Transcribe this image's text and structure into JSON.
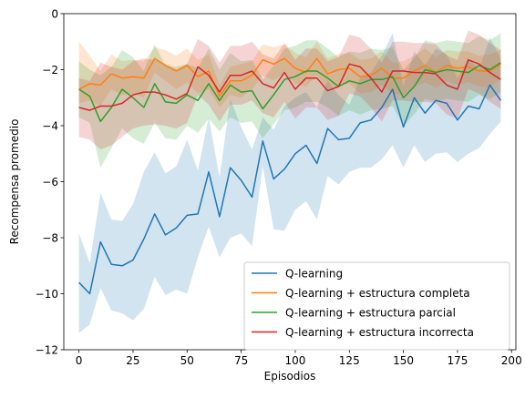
{
  "chart_data": {
    "type": "line",
    "xlabel": "Episodios",
    "ylabel": "Recompensa promedio",
    "xlim": [
      -7,
      202
    ],
    "ylim": [
      -12,
      0
    ],
    "xticks": [
      0,
      25,
      50,
      75,
      100,
      125,
      150,
      175,
      200
    ],
    "yticks": [
      -12,
      -10,
      -8,
      -6,
      -4,
      -2,
      0
    ],
    "grid": false,
    "legend_position": "lower-right",
    "x": [
      0,
      5,
      10,
      15,
      20,
      25,
      30,
      35,
      40,
      45,
      50,
      55,
      60,
      65,
      70,
      75,
      80,
      85,
      90,
      95,
      100,
      105,
      110,
      115,
      120,
      125,
      130,
      135,
      140,
      145,
      150,
      155,
      160,
      165,
      170,
      175,
      180,
      185,
      190,
      195
    ],
    "series": [
      {
        "name": "Q-learning",
        "color": "#1f77b4",
        "values": [
          -9.6,
          -10.0,
          -8.15,
          -8.95,
          -9.0,
          -8.8,
          -8.05,
          -7.15,
          -7.9,
          -7.65,
          -7.2,
          -7.15,
          -5.65,
          -7.25,
          -5.5,
          -5.95,
          -6.55,
          -4.55,
          -5.9,
          -5.55,
          -5.0,
          -4.7,
          -5.35,
          -4.1,
          -4.5,
          -4.45,
          -3.9,
          -3.8,
          -3.35,
          -2.7,
          -4.05,
          -3.0,
          -3.55,
          -3.1,
          -3.2,
          -3.8,
          -3.3,
          -3.4,
          -2.55,
          -3.1
        ],
        "lower": [
          -11.4,
          -11.1,
          -9.8,
          -10.6,
          -10.7,
          -10.95,
          -10.55,
          -9.4,
          -10.05,
          -9.85,
          -10.0,
          -8.7,
          -7.6,
          -8.7,
          -8.0,
          -7.85,
          -8.3,
          -5.45,
          -7.7,
          -7.75,
          -7.0,
          -6.7,
          -7.35,
          -5.8,
          -6.1,
          -5.65,
          -5.5,
          -5.5,
          -5.2,
          -4.7,
          -5.5,
          -4.7,
          -5.3,
          -5.0,
          -4.95,
          -5.3,
          -5.0,
          -4.8,
          -4.3,
          -3.85
        ],
        "upper": [
          -7.85,
          -8.9,
          -6.4,
          -7.35,
          -7.4,
          -6.8,
          -5.65,
          -4.95,
          -5.7,
          -5.45,
          -4.5,
          -5.6,
          -3.7,
          -5.85,
          -3.05,
          -4.05,
          -4.85,
          -3.7,
          -4.15,
          -3.3,
          -3.0,
          -2.8,
          -3.35,
          -2.4,
          -2.9,
          -3.25,
          -2.3,
          -2.1,
          -1.5,
          -0.7,
          -2.6,
          -1.35,
          -1.85,
          -1.25,
          -1.45,
          -2.3,
          -1.6,
          -2.0,
          -0.85,
          -1.6
        ]
      },
      {
        "name": "Q-learning + estructura completa",
        "color": "#ff7f0e",
        "values": [
          -2.7,
          -2.5,
          -2.55,
          -2.15,
          -2.3,
          -2.25,
          -2.3,
          -1.6,
          -1.85,
          -2.05,
          -1.85,
          -2.25,
          -2.05,
          -2.95,
          -2.4,
          -2.4,
          -2.2,
          -1.65,
          -1.8,
          -1.6,
          -1.95,
          -2.1,
          -1.6,
          -2.15,
          -2.0,
          -1.95,
          -2.25,
          -2.2,
          -1.95,
          -2.3,
          -2.3,
          -2.05,
          -1.85,
          -2.1,
          -1.85,
          -1.95,
          -1.9,
          -2.05,
          -2.05,
          -1.8
        ],
        "lower": [
          -3.2,
          -3.1,
          -3.3,
          -2.7,
          -2.9,
          -2.85,
          -3.0,
          -2.1,
          -2.4,
          -2.7,
          -2.45,
          -2.85,
          -2.7,
          -3.35,
          -2.9,
          -3.0,
          -2.7,
          -2.2,
          -2.4,
          -2.1,
          -2.5,
          -2.6,
          -2.2,
          -2.7,
          -2.55,
          -2.5,
          -2.85,
          -2.8,
          -2.55,
          -2.85,
          -2.9,
          -2.6,
          -2.45,
          -2.65,
          -2.4,
          -2.55,
          -2.45,
          -2.6,
          -2.65,
          -2.3
        ],
        "upper": [
          -1.0,
          -1.5,
          -2.05,
          -1.45,
          -1.7,
          -1.65,
          -1.7,
          -1.2,
          -1.3,
          -1.5,
          -1.25,
          -1.65,
          -1.45,
          -2.55,
          -1.9,
          -1.8,
          -1.7,
          -1.1,
          -1.2,
          -1.1,
          -1.4,
          -1.55,
          -1.0,
          -1.6,
          -1.45,
          -1.4,
          -1.65,
          -1.6,
          -1.35,
          -1.75,
          -1.7,
          -1.5,
          -1.25,
          -1.55,
          -1.3,
          -1.35,
          -1.35,
          -1.5,
          -1.45,
          -1.3
        ]
      },
      {
        "name": "Q-learning + estructura parcial",
        "color": "#2ca02c",
        "values": [
          -2.7,
          -2.95,
          -3.85,
          -3.35,
          -2.7,
          -3.0,
          -3.35,
          -2.5,
          -3.15,
          -3.2,
          -2.9,
          -3.1,
          -2.5,
          -3.1,
          -2.55,
          -2.8,
          -2.75,
          -3.4,
          -2.9,
          -2.35,
          -2.25,
          -2.05,
          -2.05,
          -2.3,
          -2.6,
          -2.4,
          -2.5,
          -2.35,
          -2.35,
          -2.25,
          -3.0,
          -2.6,
          -2.0,
          -2.1,
          -2.0,
          -2.05,
          -2.1,
          -1.85,
          -2.0,
          -1.75
        ],
        "lower": [
          -3.7,
          -3.9,
          -5.5,
          -4.8,
          -4.1,
          -4.45,
          -4.65,
          -3.9,
          -4.45,
          -4.5,
          -4.0,
          -4.25,
          -3.75,
          -4.2,
          -3.7,
          -3.9,
          -3.85,
          -4.45,
          -3.95,
          -3.45,
          -3.35,
          -3.15,
          -3.15,
          -3.35,
          -3.65,
          -3.45,
          -3.6,
          -3.45,
          -3.4,
          -3.3,
          -4.0,
          -3.6,
          -3.05,
          -3.15,
          -3.05,
          -3.1,
          -3.15,
          -2.9,
          -3.05,
          -2.8
        ],
        "upper": [
          -1.7,
          -2.0,
          -2.2,
          -1.9,
          -1.3,
          -1.55,
          -2.05,
          -1.1,
          -1.85,
          -1.9,
          -1.8,
          -1.95,
          -1.25,
          -2.0,
          -1.4,
          -1.7,
          -1.65,
          -2.35,
          -1.85,
          -1.25,
          -1.15,
          -0.95,
          -0.95,
          -1.25,
          -1.55,
          -1.35,
          -1.4,
          -1.25,
          -1.3,
          -1.2,
          -2.0,
          -1.6,
          -0.95,
          -1.05,
          -0.95,
          -1.0,
          -1.05,
          -0.8,
          -0.95,
          -0.7
        ]
      },
      {
        "name": "Q-learning + estructura incorrecta",
        "color": "#d62728",
        "values": [
          -3.35,
          -3.45,
          -3.3,
          -3.3,
          -3.2,
          -2.9,
          -2.8,
          -2.8,
          -2.9,
          -3.05,
          -2.85,
          -1.9,
          -2.2,
          -2.8,
          -2.2,
          -2.2,
          -2.05,
          -2.5,
          -2.65,
          -2.1,
          -2.7,
          -2.3,
          -2.3,
          -2.75,
          -2.6,
          -1.8,
          -1.9,
          -2.3,
          -2.8,
          -2.05,
          -2.05,
          -2.1,
          -2.1,
          -2.15,
          -2.55,
          -2.7,
          -1.65,
          -1.8,
          -2.1,
          -2.35
        ],
        "lower": [
          -4.4,
          -4.5,
          -4.85,
          -4.7,
          -4.4,
          -4.1,
          -4.0,
          -3.95,
          -4.0,
          -4.1,
          -3.9,
          -2.9,
          -3.25,
          -3.85,
          -3.25,
          -3.25,
          -3.1,
          -3.55,
          -3.7,
          -3.15,
          -3.75,
          -3.35,
          -3.35,
          -3.8,
          -3.65,
          -2.85,
          -2.95,
          -3.35,
          -3.85,
          -3.1,
          -3.1,
          -3.15,
          -3.15,
          -3.2,
          -3.6,
          -3.75,
          -2.7,
          -2.85,
          -3.15,
          -3.4
        ],
        "upper": [
          -2.3,
          -2.4,
          -1.75,
          -1.9,
          -2.0,
          -1.7,
          -1.6,
          -1.65,
          -1.8,
          -2.0,
          -1.8,
          -0.9,
          -1.15,
          -1.75,
          -1.15,
          -1.15,
          -1.0,
          -1.45,
          -1.6,
          -1.05,
          -1.65,
          -1.25,
          -1.25,
          -1.7,
          -1.55,
          -0.75,
          -0.85,
          -1.25,
          -1.75,
          -1.0,
          -1.0,
          -1.05,
          -1.05,
          -1.1,
          -1.5,
          -1.65,
          -0.6,
          -0.75,
          -1.05,
          -1.3
        ]
      }
    ]
  }
}
